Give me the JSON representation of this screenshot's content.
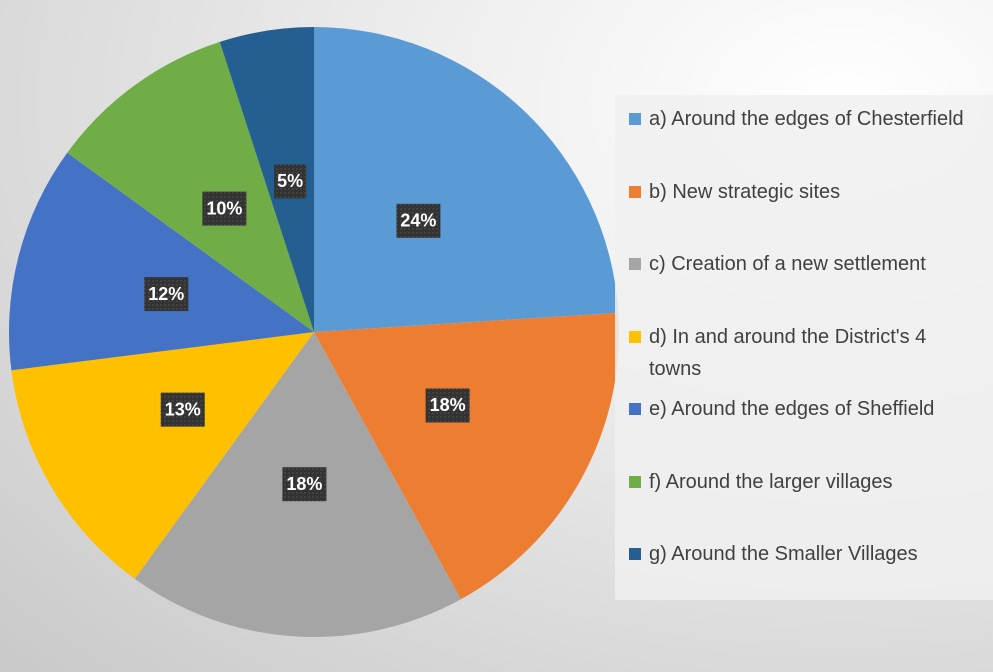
{
  "chart_data": {
    "type": "pie",
    "categories": [
      "a) Around the edges of Chesterfield",
      "b) New strategic sites",
      "c) Creation of a new settlement",
      "d) In and around the District's 4 towns",
      "e) Around the edges of Sheffield",
      "f) Around the larger villages",
      "g) Around the Smaller Villages"
    ],
    "values": [
      24,
      18,
      18,
      13,
      12,
      10,
      5
    ],
    "value_labels": [
      "24%",
      "18%",
      "18%",
      "13%",
      "12%",
      "10%",
      "5%"
    ],
    "colors": [
      "#5b9bd5",
      "#ed7d31",
      "#a5a5a5",
      "#ffc000",
      "#4472c4",
      "#70ad47",
      "#255e91"
    ],
    "legend": "right"
  }
}
